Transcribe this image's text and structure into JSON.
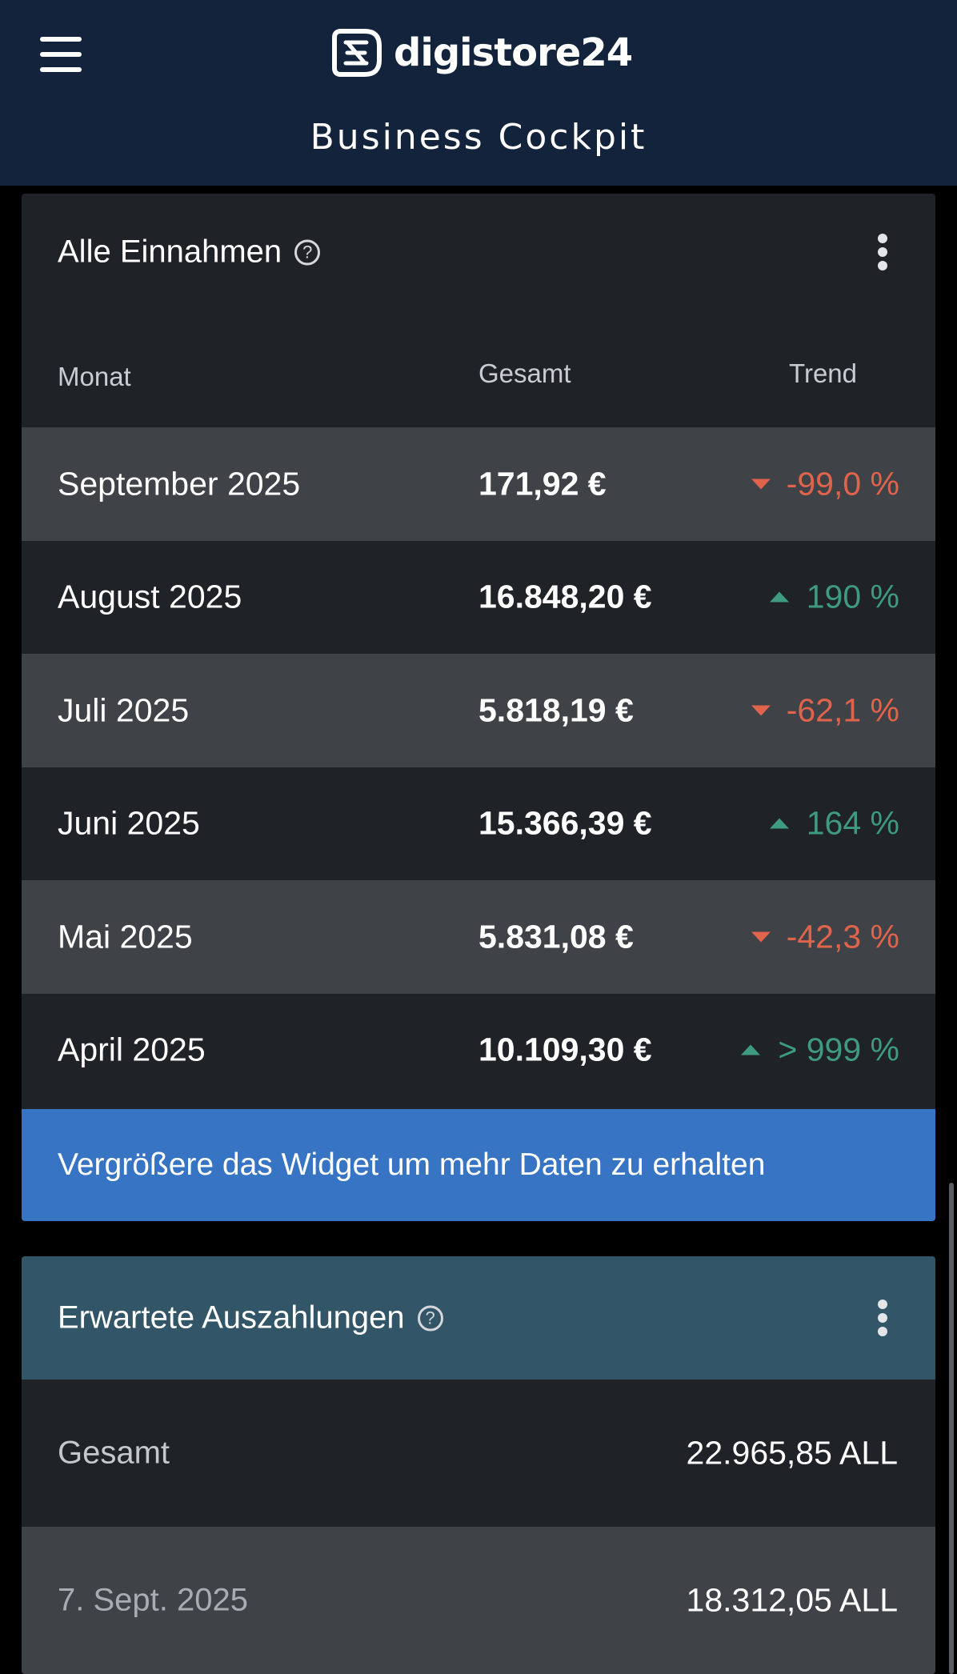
{
  "header": {
    "logo_text": "digistore24",
    "title": "Business Cockpit"
  },
  "income_widget": {
    "title": "Alle Einnahmen",
    "columns": {
      "month": "Monat",
      "total": "Gesamt",
      "trend": "Trend"
    },
    "rows": [
      {
        "month": "September 2025",
        "total": "171,92 €",
        "trend": "-99,0 %",
        "direction": "down"
      },
      {
        "month": "August 2025",
        "total": "16.848,20 €",
        "trend": "190 %",
        "direction": "up"
      },
      {
        "month": "Juli 2025",
        "total": "5.818,19 €",
        "trend": "-62,1 %",
        "direction": "down"
      },
      {
        "month": "Juni 2025",
        "total": "15.366,39 €",
        "trend": "164 %",
        "direction": "up"
      },
      {
        "month": "Mai 2025",
        "total": "5.831,08 €",
        "trend": "-42,3 %",
        "direction": "down"
      },
      {
        "month": "April 2025",
        "total": "10.109,30 €",
        "trend": "> 999 %",
        "direction": "up"
      }
    ],
    "expand_hint": "Vergrößere das Widget um mehr Daten zu erhalten"
  },
  "payouts_widget": {
    "title": "Erwartete Auszahlungen",
    "rows": [
      {
        "label": "Gesamt",
        "value": "22.965,85 ALL"
      },
      {
        "label": "7. Sept. 2025",
        "value": "18.312,05 ALL"
      }
    ]
  },
  "colors": {
    "header_bg": "#13233b",
    "negative": "#e0644c",
    "positive": "#3e9a80",
    "accent_blue": "#3874c4",
    "payout_header": "#335568"
  }
}
